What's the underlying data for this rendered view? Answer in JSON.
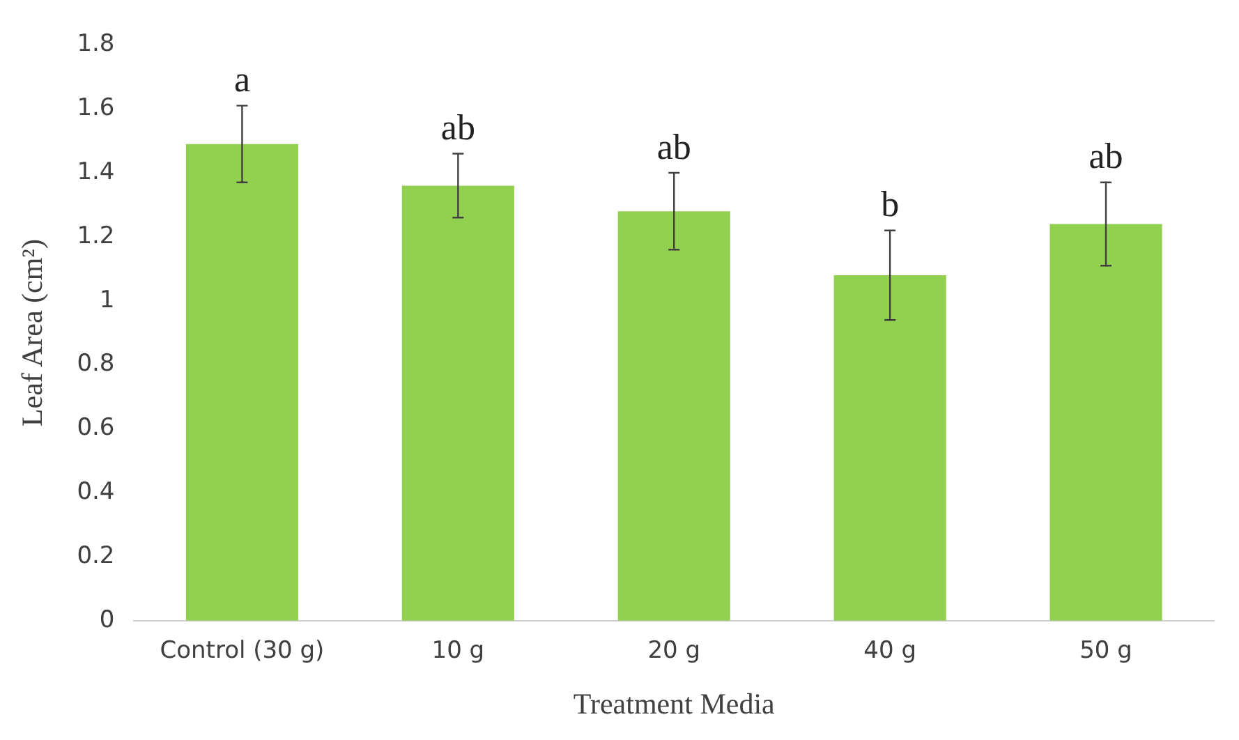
{
  "chart_data": {
    "type": "bar",
    "xlabel": "Treatment Media",
    "ylabel": "Leaf Area (cm²)",
    "categories": [
      "Control (30 g)",
      "10 g",
      "20 g",
      "40 g",
      "50 g"
    ],
    "values": [
      1.49,
      1.36,
      1.28,
      1.08,
      1.24
    ],
    "errors": [
      0.12,
      0.1,
      0.12,
      0.14,
      0.13
    ],
    "color": "#92d050",
    "ylim": [
      0,
      1.8
    ],
    "yticks": [
      0,
      0.2,
      0.4,
      0.6,
      0.8,
      1,
      1.2,
      1.4,
      1.6,
      1.8
    ],
    "grid": false,
    "legend": false,
    "annotations": [
      {
        "text": "a",
        "x": "Control (30 g)",
        "y": 1.61
      },
      {
        "text": "ab",
        "x": "10 g",
        "y": 1.46
      },
      {
        "text": "ab",
        "x": "20 g",
        "y": 1.4
      },
      {
        "text": "b",
        "x": "40 g",
        "y": 1.22
      },
      {
        "text": "ab",
        "x": "50 g",
        "y": 1.37
      }
    ]
  }
}
